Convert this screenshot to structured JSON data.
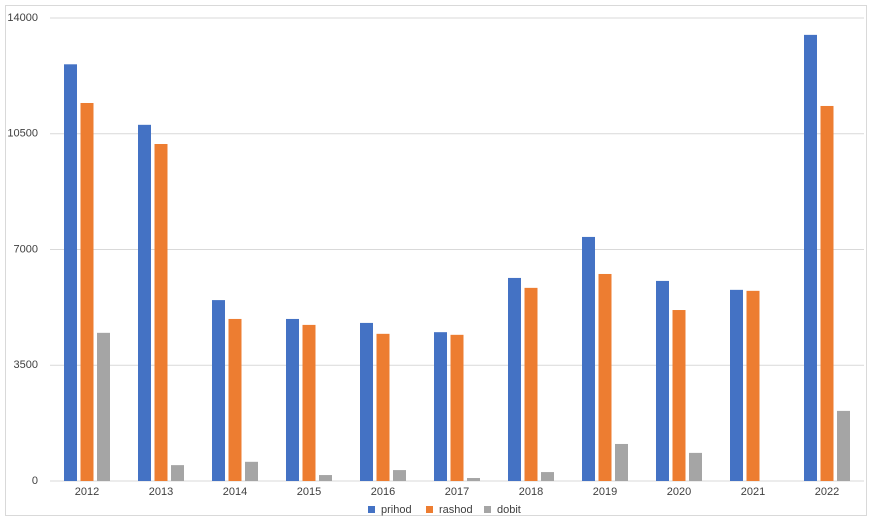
{
  "chart_data": {
    "type": "bar",
    "categories": [
      "2012",
      "2013",
      "2014",
      "2015",
      "2016",
      "2017",
      "2018",
      "2019",
      "2020",
      "2021",
      "2022"
    ],
    "series": [
      {
        "name": "prihod",
        "color": "#4472c4",
        "values": [
          12600,
          10770,
          5470,
          4900,
          4780,
          4500,
          6140,
          7380,
          6050,
          5780,
          13490
        ]
      },
      {
        "name": "rashod",
        "color": "#ed7d31",
        "values": [
          11430,
          10190,
          4900,
          4720,
          4450,
          4420,
          5840,
          6260,
          5170,
          5750,
          11340
        ]
      },
      {
        "name": "dobit",
        "color": "#a5a5a5",
        "values": [
          4480,
          480,
          580,
          180,
          330,
          90,
          270,
          1120,
          850,
          0,
          2120
        ]
      }
    ],
    "ylim": [
      0,
      14000
    ],
    "yticks": [
      0,
      3500,
      7000,
      10500,
      14000
    ],
    "grid": true,
    "legend": "bottom"
  }
}
